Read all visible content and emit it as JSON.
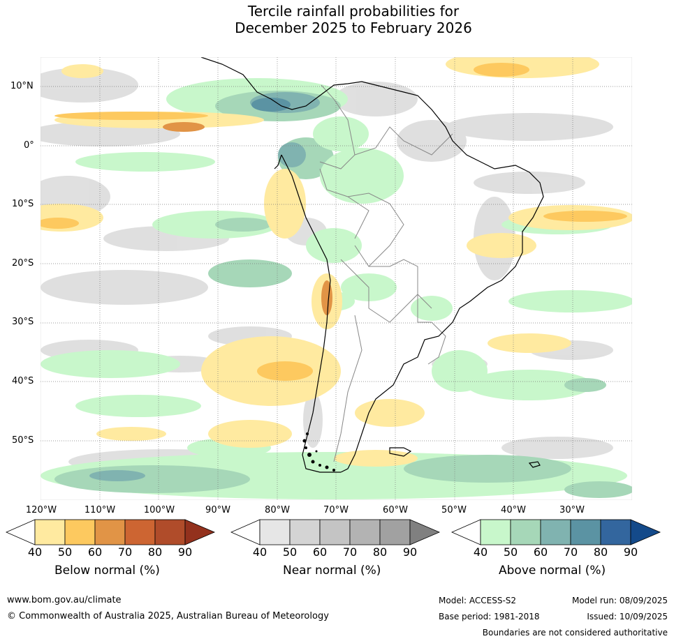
{
  "title": {
    "line1": "Tercile rainfall probabilities for",
    "line2": "December 2025 to February 2026"
  },
  "axes": {
    "lat_labels": [
      "10°N",
      "0°",
      "10°S",
      "20°S",
      "30°S",
      "40°S",
      "50°S"
    ],
    "lon_labels": [
      "120°W",
      "110°W",
      "100°W",
      "90°W",
      "80°W",
      "70°W",
      "60°W",
      "50°W",
      "40°W",
      "30°W"
    ]
  },
  "map": {
    "lon_range": [
      -120,
      -20
    ],
    "lat_range": [
      -60,
      15
    ],
    "gridline_style": "dotted"
  },
  "legends": [
    {
      "title": "Below normal (%)",
      "ticks": [
        "40",
        "50",
        "60",
        "70",
        "80",
        "90"
      ],
      "colors": [
        "#ffffff",
        "#ffeaa0",
        "#fdc95f",
        "#e19446",
        "#cd6532",
        "#b04c2a",
        "#93311d"
      ]
    },
    {
      "title": "Near normal (%)",
      "ticks": [
        "40",
        "50",
        "60",
        "70",
        "80",
        "90"
      ],
      "colors": [
        "#ffffff",
        "#e6e6e6",
        "#d4d4d4",
        "#c4c4c4",
        "#b3b3b3",
        "#a1a1a1",
        "#808080"
      ]
    },
    {
      "title": "Above normal (%)",
      "ticks": [
        "40",
        "50",
        "60",
        "70",
        "80",
        "90"
      ],
      "colors": [
        "#ffffff",
        "#c8f7cb",
        "#a6d7b8",
        "#80b3b0",
        "#5b93a3",
        "#33669e",
        "#144a8a"
      ]
    }
  ],
  "footer": {
    "url": "www.bom.gov.au/climate",
    "copyright": "© Commonwealth of Australia 2025, Australian Bureau of Meteorology",
    "model": "Model: ACCESS-S2",
    "model_run": "Model run: 08/09/2025",
    "base_period": "Base period: 1981-2018",
    "issued": "Issued: 10/09/2025",
    "disclaimer": "Boundaries are not considered authoritative"
  }
}
